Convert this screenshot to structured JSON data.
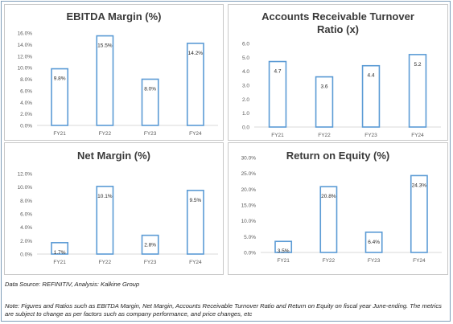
{
  "source_text": "Data Source: REFINITIV, Analysis: Kalkine Group",
  "note_text": "Note: Figures and Ratios such as EBITDA Margin, Net Margin, Accounts Receivable Turnover Ratio and Return on Equity on fiscal year June-ending. The metrics are subject to change as per factors such as company performance, and price changes, etc",
  "colors": {
    "bar_stroke": "#5b9bd5",
    "axis": "#d9d9d9",
    "text": "#595959",
    "title": "#3a3a3a"
  },
  "chart_data": [
    {
      "type": "bar",
      "title": "EBITDA Margin (%)",
      "categories": [
        "FY21",
        "FY22",
        "FY23",
        "FY24"
      ],
      "values": [
        9.8,
        15.5,
        8.0,
        14.2
      ],
      "value_labels": [
        "9.8%",
        "15.5%",
        "8.0%",
        "14.2%"
      ],
      "ylim": [
        0,
        16
      ],
      "yticks": [
        "0.0%",
        "2.0%",
        "4.0%",
        "6.0%",
        "8.0%",
        "10.0%",
        "12.0%",
        "14.0%",
        "16.0%"
      ],
      "xlabel": "",
      "ylabel": ""
    },
    {
      "type": "bar",
      "title": "Accounts Receivable Turnover Ratio (x)",
      "categories": [
        "FY21",
        "FY22",
        "FY23",
        "FY24"
      ],
      "values": [
        4.7,
        3.6,
        4.4,
        5.2
      ],
      "value_labels": [
        "4.7",
        "3.6",
        "4.4",
        "5.2"
      ],
      "ylim": [
        0,
        6
      ],
      "yticks": [
        "0.0",
        "1.0",
        "2.0",
        "3.0",
        "4.0",
        "5.0",
        "6.0"
      ],
      "xlabel": "",
      "ylabel": ""
    },
    {
      "type": "bar",
      "title": "Net Margin (%)",
      "categories": [
        "FY21",
        "FY22",
        "FY23",
        "FY24"
      ],
      "values": [
        1.7,
        10.1,
        2.8,
        9.5
      ],
      "value_labels": [
        "1.7%",
        "10.1%",
        "2.8%",
        "9.5%"
      ],
      "ylim": [
        0,
        12
      ],
      "yticks": [
        "0.0%",
        "2.0%",
        "4.0%",
        "6.0%",
        "8.0%",
        "10.0%",
        "12.0%"
      ],
      "xlabel": "",
      "ylabel": ""
    },
    {
      "type": "bar",
      "title": "Return on Equity (%)",
      "categories": [
        "FY21",
        "FY22",
        "FY23",
        "FY24"
      ],
      "values": [
        3.5,
        20.8,
        6.4,
        24.3
      ],
      "value_labels": [
        "3.5%",
        "20.8%",
        "6.4%",
        "24.3%"
      ],
      "ylim": [
        0,
        30
      ],
      "yticks": [
        "0.0%",
        "5.0%",
        "10.0%",
        "15.0%",
        "20.0%",
        "25.0%",
        "30.0%"
      ],
      "xlabel": "",
      "ylabel": ""
    }
  ]
}
